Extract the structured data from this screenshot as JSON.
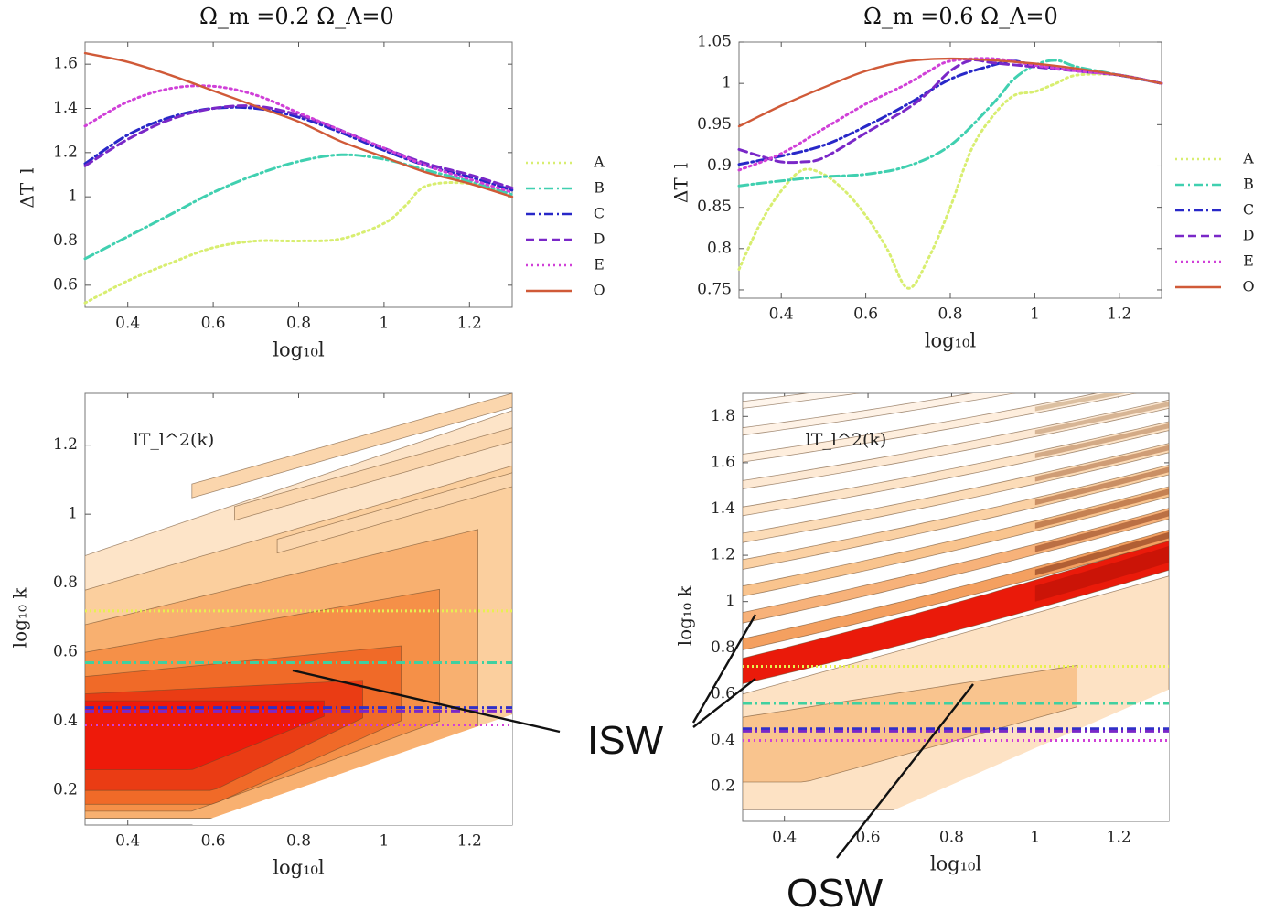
{
  "chart_data": [
    {
      "type": "line",
      "title": "Ω_m =0.2  Ω_Λ=0",
      "xlabel": "log₁₀l",
      "ylabel": "ΔT_l",
      "xlim": [
        0.3,
        1.3
      ],
      "ylim": [
        0.5,
        1.7
      ],
      "xticks": [
        "0.4",
        "0.6",
        "0.8",
        "1",
        "1.2"
      ],
      "yticks": [
        "0.6",
        "0.8",
        "1",
        "1.2",
        "1.4",
        "1.6"
      ],
      "legend_position": "right",
      "series": [
        {
          "name": "A",
          "color": "#d8ee70",
          "style": "dotted",
          "x": [
            0.3,
            0.4,
            0.5,
            0.6,
            0.7,
            0.8,
            0.9,
            1.0,
            1.05,
            1.1,
            1.2,
            1.3
          ],
          "y": [
            0.52,
            0.62,
            0.7,
            0.77,
            0.8,
            0.8,
            0.81,
            0.88,
            0.96,
            1.05,
            1.06,
            1.0
          ]
        },
        {
          "name": "B",
          "color": "#40d0b0",
          "style": "dashdot",
          "x": [
            0.3,
            0.4,
            0.5,
            0.6,
            0.7,
            0.8,
            0.9,
            1.0,
            1.1,
            1.2,
            1.3
          ],
          "y": [
            0.72,
            0.82,
            0.92,
            1.02,
            1.1,
            1.16,
            1.19,
            1.17,
            1.12,
            1.07,
            1.01
          ]
        },
        {
          "name": "C",
          "color": "#2828c8",
          "style": "dashdot",
          "x": [
            0.3,
            0.4,
            0.5,
            0.6,
            0.7,
            0.8,
            0.9,
            1.0,
            1.1,
            1.2,
            1.3
          ],
          "y": [
            1.15,
            1.28,
            1.36,
            1.4,
            1.4,
            1.36,
            1.29,
            1.21,
            1.14,
            1.09,
            1.03
          ]
        },
        {
          "name": "D",
          "color": "#7a28c8",
          "style": "dashed",
          "x": [
            0.3,
            0.4,
            0.5,
            0.6,
            0.7,
            0.8,
            0.9,
            1.0,
            1.1,
            1.2,
            1.3
          ],
          "y": [
            1.14,
            1.26,
            1.35,
            1.4,
            1.41,
            1.37,
            1.3,
            1.22,
            1.15,
            1.1,
            1.04
          ]
        },
        {
          "name": "E",
          "color": "#d040d8",
          "style": "dotted",
          "x": [
            0.3,
            0.4,
            0.5,
            0.6,
            0.7,
            0.8,
            0.9,
            1.0,
            1.1,
            1.2,
            1.3
          ],
          "y": [
            1.32,
            1.43,
            1.49,
            1.5,
            1.46,
            1.38,
            1.3,
            1.22,
            1.14,
            1.08,
            1.02
          ]
        },
        {
          "name": "O",
          "color": "#d05a38",
          "style": "solid",
          "x": [
            0.3,
            0.4,
            0.5,
            0.6,
            0.7,
            0.8,
            0.9,
            1.0,
            1.1,
            1.2,
            1.3
          ],
          "y": [
            1.65,
            1.61,
            1.55,
            1.48,
            1.41,
            1.34,
            1.25,
            1.18,
            1.11,
            1.06,
            1.0
          ]
        }
      ]
    },
    {
      "type": "line",
      "title": "Ω_m =0.6  Ω_Λ=0",
      "xlabel": "log₁₀l",
      "ylabel": "ΔT_l",
      "xlim": [
        0.3,
        1.3
      ],
      "ylim": [
        0.74,
        1.05
      ],
      "xticks": [
        "0.4",
        "0.6",
        "0.8",
        "1",
        "1.2"
      ],
      "yticks": [
        "0.75",
        "0.8",
        "0.85",
        "0.9",
        "0.95",
        "1",
        "1.05"
      ],
      "legend_position": "right",
      "series": [
        {
          "name": "A",
          "color": "#d8ee70",
          "style": "dotted",
          "x": [
            0.3,
            0.35,
            0.4,
            0.45,
            0.5,
            0.55,
            0.6,
            0.65,
            0.7,
            0.75,
            0.8,
            0.85,
            0.9,
            0.95,
            1.0,
            1.05,
            1.1,
            1.2,
            1.3
          ],
          "y": [
            0.775,
            0.83,
            0.87,
            0.895,
            0.89,
            0.87,
            0.84,
            0.8,
            0.752,
            0.79,
            0.85,
            0.92,
            0.96,
            0.985,
            0.99,
            1.0,
            1.01,
            1.01,
            1.0
          ]
        },
        {
          "name": "B",
          "color": "#40d0b0",
          "style": "dashdot",
          "x": [
            0.3,
            0.4,
            0.5,
            0.6,
            0.7,
            0.8,
            0.9,
            0.95,
            1.0,
            1.05,
            1.1,
            1.2,
            1.3
          ],
          "y": [
            0.876,
            0.882,
            0.887,
            0.89,
            0.9,
            0.925,
            0.975,
            1.005,
            1.022,
            1.028,
            1.02,
            1.01,
            1.0
          ]
        },
        {
          "name": "C",
          "color": "#2828c8",
          "style": "dashdot",
          "x": [
            0.3,
            0.4,
            0.5,
            0.6,
            0.7,
            0.8,
            0.9,
            0.95,
            1.0,
            1.1,
            1.2,
            1.3
          ],
          "y": [
            0.902,
            0.912,
            0.925,
            0.948,
            0.975,
            1.005,
            1.022,
            1.027,
            1.022,
            1.015,
            1.01,
            1.0
          ]
        },
        {
          "name": "D",
          "color": "#7a28c8",
          "style": "dashed",
          "x": [
            0.3,
            0.35,
            0.4,
            0.45,
            0.5,
            0.6,
            0.7,
            0.75,
            0.8,
            0.85,
            0.9,
            1.0,
            1.1,
            1.2,
            1.3
          ],
          "y": [
            0.92,
            0.912,
            0.905,
            0.905,
            0.91,
            0.94,
            0.97,
            0.99,
            1.015,
            1.028,
            1.025,
            1.02,
            1.015,
            1.01,
            1.0
          ]
        },
        {
          "name": "E",
          "color": "#d040d8",
          "style": "dotted",
          "x": [
            0.3,
            0.4,
            0.5,
            0.6,
            0.7,
            0.75,
            0.8,
            0.9,
            1.0,
            1.1,
            1.2,
            1.3
          ],
          "y": [
            0.895,
            0.915,
            0.945,
            0.975,
            1.0,
            1.015,
            1.027,
            1.03,
            1.022,
            1.015,
            1.01,
            1.0
          ]
        },
        {
          "name": "O",
          "color": "#d05a38",
          "style": "solid",
          "x": [
            0.3,
            0.4,
            0.5,
            0.6,
            0.7,
            0.8,
            0.9,
            1.0,
            1.1,
            1.2,
            1.3
          ],
          "y": [
            0.948,
            0.973,
            0.995,
            1.015,
            1.027,
            1.03,
            1.028,
            1.024,
            1.018,
            1.01,
            1.0
          ]
        }
      ]
    },
    {
      "type": "heatmap",
      "title": "",
      "annotation": "lT_l^2(k)",
      "xlabel": "log₁₀l",
      "ylabel": "log₁₀ k",
      "xlim": [
        0.3,
        1.3
      ],
      "ylim": [
        0.1,
        1.35
      ],
      "xticks": [
        "0.4",
        "0.6",
        "0.8",
        "1",
        "1.2"
      ],
      "yticks": [
        "0.2",
        "0.4",
        "0.6",
        "0.8",
        "1",
        "1.2"
      ],
      "overlay_lines": [
        {
          "ref": "A",
          "color": "#e8f050",
          "y": 0.72
        },
        {
          "ref": "B",
          "color": "#40d0a0",
          "y": 0.57
        },
        {
          "ref": "C",
          "color": "#3030c8",
          "y": 0.44
        },
        {
          "ref": "D",
          "color": "#7a28c8",
          "y": 0.43
        },
        {
          "ref": "E",
          "color": "#d040d8",
          "y": 0.39
        }
      ]
    },
    {
      "type": "heatmap",
      "title": "",
      "annotation": "lT_l^2(k)",
      "xlabel": "log₁₀l",
      "ylabel": "log₁₀ k",
      "xlim": [
        0.3,
        1.32
      ],
      "ylim": [
        0.05,
        1.9
      ],
      "xticks": [
        "0.4",
        "0.6",
        "0.8",
        "1",
        "1.2"
      ],
      "yticks": [
        "0.2",
        "0.4",
        "0.6",
        "0.8",
        "1",
        "1.2",
        "1.4",
        "1.6",
        "1.8"
      ],
      "overlay_lines": [
        {
          "ref": "A",
          "color": "#e8f050",
          "y": 0.72
        },
        {
          "ref": "B",
          "color": "#40d0a0",
          "y": 0.56
        },
        {
          "ref": "C",
          "color": "#3030c8",
          "y": 0.45
        },
        {
          "ref": "D",
          "color": "#7a28c8",
          "y": 0.44
        },
        {
          "ref": "E",
          "color": "#d040d8",
          "y": 0.4
        }
      ]
    }
  ],
  "annotations": {
    "isw": "ISW",
    "osw": "OSW"
  }
}
